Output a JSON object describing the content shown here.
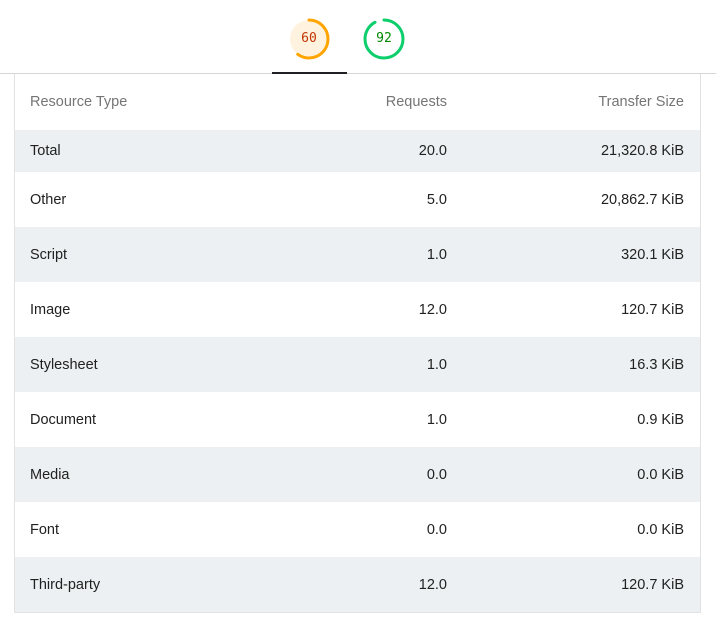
{
  "tabs": [
    {
      "score": "60",
      "color": "#ffa400",
      "bg": "#fff3e0",
      "text_color": "#c33300",
      "fraction": 0.6,
      "active": true
    },
    {
      "score": "92",
      "color": "#0cce6b",
      "bg": "#ffffff",
      "text_color": "#008800",
      "fraction": 0.92,
      "active": false
    }
  ],
  "table": {
    "headers": {
      "resource_type": "Resource Type",
      "requests": "Requests",
      "transfer_size": "Transfer Size"
    },
    "rows": [
      {
        "type": "Total",
        "requests": "20.0",
        "size": "21,320.8 KiB"
      },
      {
        "type": "Other",
        "requests": "5.0",
        "size": "20,862.7 KiB"
      },
      {
        "type": "Script",
        "requests": "1.0",
        "size": "320.1 KiB"
      },
      {
        "type": "Image",
        "requests": "12.0",
        "size": "120.7 KiB"
      },
      {
        "type": "Stylesheet",
        "requests": "1.0",
        "size": "16.3 KiB"
      },
      {
        "type": "Document",
        "requests": "1.0",
        "size": "0.9 KiB"
      },
      {
        "type": "Media",
        "requests": "0.0",
        "size": "0.0 KiB"
      },
      {
        "type": "Font",
        "requests": "0.0",
        "size": "0.0 KiB"
      },
      {
        "type": "Third-party",
        "requests": "12.0",
        "size": "120.7 KiB"
      }
    ]
  }
}
